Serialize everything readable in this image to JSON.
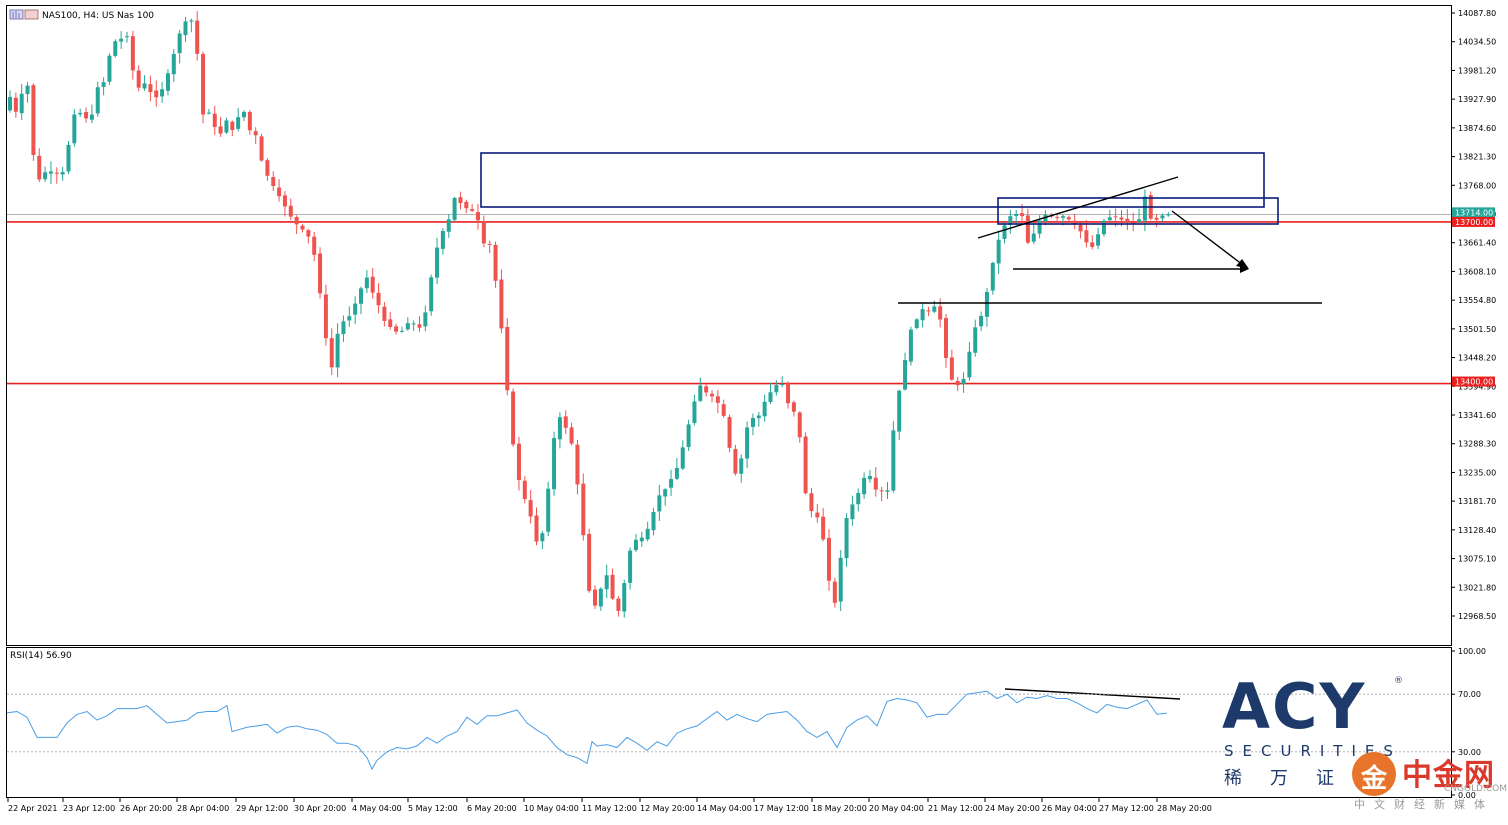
{
  "header": {
    "symbol_label": "NAS100, H4:  US Nas 100",
    "rsi_label": "RSI(14) 56.90"
  },
  "colors": {
    "bull": "#26a69a",
    "bear": "#ef5350",
    "level_line": "#e82020",
    "zone": "#0a1a7a",
    "trend": "#000000",
    "rsi": "#4a9de8",
    "grid": "#888888",
    "frame": "#000000"
  },
  "chart_data": [
    {
      "type": "candlestick",
      "title": "NAS100, H4:  US Nas 100",
      "ylim": [
        12940,
        14095
      ],
      "y_ticks": [
        "14087.80",
        "14034.50",
        "13981.20",
        "13927.90",
        "13874.60",
        "13821.30",
        "13768.00",
        "13714.70",
        "13661.40",
        "13608.10",
        "13554.80",
        "13501.50",
        "13448.20",
        "13394.90",
        "13341.60",
        "13288.30",
        "13235.00",
        "13181.70",
        "13128.40",
        "13075.10",
        "13021.80",
        "12968.50"
      ],
      "x_ticks": [
        "22 Apr 2021",
        "23 Apr 12:00",
        "26 Apr 20:00",
        "28 Apr 04:00",
        "29 Apr 12:00",
        "30 Apr 20:00",
        "4 May 04:00",
        "5 May 12:00",
        "6 May 20:00",
        "10 May 04:00",
        "11 May 12:00",
        "12 May 20:00",
        "14 May 04:00",
        "17 May 12:00",
        "18 May 20:00",
        "20 May 04:00",
        "21 May 12:00",
        "24 May 20:00",
        "26 May 04:00",
        "27 May 12:00",
        "28 May 20:00"
      ],
      "price_labels": [
        {
          "text": "13714.00",
          "value": 13714.0,
          "color": "#26a69a"
        },
        {
          "text": "13700.00",
          "value": 13700.0,
          "color": "#e82020"
        },
        {
          "text": "13400.00",
          "value": 13400.0,
          "color": "#e82020"
        }
      ],
      "horizontal_levels": [
        13700,
        13400
      ],
      "candle_anchors": [
        [
          0,
          13907
        ],
        [
          5,
          13932
        ],
        [
          10,
          13903
        ],
        [
          15,
          13942
        ],
        [
          20,
          13955
        ],
        [
          25,
          13790
        ],
        [
          30,
          13775
        ],
        [
          35,
          13800
        ],
        [
          40,
          13790
        ],
        [
          45,
          13790
        ],
        [
          50,
          13795
        ],
        [
          55,
          13895
        ],
        [
          60,
          13905
        ],
        [
          65,
          13898
        ],
        [
          70,
          13880
        ],
        [
          75,
          13950
        ],
        [
          80,
          13950
        ],
        [
          85,
          14005
        ],
        [
          90,
          14035
        ],
        [
          95,
          14040
        ],
        [
          100,
          14045
        ],
        [
          105,
          13975
        ],
        [
          110,
          13945
        ],
        [
          115,
          13960
        ],
        [
          120,
          13935
        ],
        [
          125,
          13930
        ],
        [
          130,
          13955
        ],
        [
          135,
          13990
        ],
        [
          140,
          14030
        ],
        [
          145,
          14070
        ],
        [
          150,
          14075
        ],
        [
          155,
          14072
        ],
        [
          160,
          13895
        ],
        [
          165,
          13910
        ],
        [
          170,
          13880
        ],
        [
          175,
          13860
        ],
        [
          180,
          13890
        ],
        [
          185,
          13870
        ],
        [
          190,
          13895
        ],
        [
          195,
          13905
        ],
        [
          200,
          13865
        ],
        [
          205,
          13860
        ],
        [
          210,
          13800
        ],
        [
          215,
          13780
        ],
        [
          220,
          13760
        ],
        [
          225,
          13740
        ],
        [
          230,
          13720
        ],
        [
          235,
          13700
        ],
        [
          240,
          13690
        ],
        [
          245,
          13680
        ],
        [
          250,
          13660
        ],
        [
          255,
          13590
        ],
        [
          260,
          13500
        ],
        [
          265,
          13420
        ],
        [
          270,
          13490
        ],
        [
          275,
          13515
        ],
        [
          280,
          13525
        ],
        [
          285,
          13550
        ],
        [
          290,
          13580
        ],
        [
          295,
          13600
        ],
        [
          300,
          13560
        ],
        [
          305,
          13540
        ],
        [
          310,
          13505
        ],
        [
          315,
          13505
        ],
        [
          320,
          13490
        ],
        [
          325,
          13505
        ],
        [
          330,
          13520
        ],
        [
          335,
          13500
        ],
        [
          340,
          13510
        ],
        [
          345,
          13580
        ],
        [
          350,
          13645
        ],
        [
          355,
          13680
        ],
        [
          360,
          13700
        ],
        [
          365,
          13745
        ],
        [
          370,
          13735
        ],
        [
          375,
          13725
        ],
        [
          380,
          13720
        ],
        [
          385,
          13700
        ],
        [
          390,
          13650
        ],
        [
          395,
          13660
        ],
        [
          400,
          13560
        ],
        [
          405,
          13470
        ],
        [
          410,
          13330
        ],
        [
          415,
          13250
        ],
        [
          420,
          13190
        ],
        [
          425,
          13180
        ],
        [
          430,
          13110
        ],
        [
          435,
          13100
        ],
        [
          440,
          13180
        ],
        [
          445,
          13290
        ],
        [
          450,
          13340
        ],
        [
          455,
          13320
        ],
        [
          460,
          13290
        ],
        [
          465,
          13210
        ],
        [
          470,
          13110
        ],
        [
          475,
          13000
        ],
        [
          480,
          12985
        ],
        [
          485,
          13030
        ],
        [
          490,
          13050
        ],
        [
          495,
          12975
        ],
        [
          500,
          12980
        ],
        [
          505,
          13070
        ],
        [
          510,
          13110
        ],
        [
          515,
          13110
        ],
        [
          520,
          13120
        ],
        [
          525,
          13150
        ],
        [
          530,
          13190
        ],
        [
          535,
          13200
        ],
        [
          540,
          13220
        ],
        [
          545,
          13240
        ],
        [
          550,
          13280
        ],
        [
          555,
          13325
        ],
        [
          560,
          13370
        ],
        [
          565,
          13400
        ],
        [
          570,
          13380
        ],
        [
          575,
          13375
        ],
        [
          580,
          13360
        ],
        [
          585,
          13330
        ],
        [
          590,
          13250
        ],
        [
          595,
          13220
        ],
        [
          600,
          13300
        ],
        [
          605,
          13340
        ],
        [
          610,
          13330
        ],
        [
          615,
          13360
        ],
        [
          620,
          13380
        ],
        [
          625,
          13395
        ],
        [
          630,
          13405
        ],
        [
          635,
          13365
        ],
        [
          640,
          13350
        ],
        [
          645,
          13300
        ],
        [
          650,
          13190
        ],
        [
          655,
          13160
        ],
        [
          660,
          13150
        ],
        [
          665,
          13100
        ],
        [
          670,
          13010
        ],
        [
          675,
          12985
        ],
        [
          680,
          13130
        ],
        [
          685,
          13165
        ],
        [
          690,
          13185
        ],
        [
          695,
          13210
        ],
        [
          700,
          13245
        ],
        [
          705,
          13200
        ],
        [
          710,
          13210
        ],
        [
          715,
          13175
        ],
        [
          720,
          13300
        ],
        [
          725,
          13380
        ],
        [
          730,
          13440
        ],
        [
          735,
          13500
        ],
        [
          740,
          13520
        ],
        [
          745,
          13540
        ],
        [
          750,
          13535
        ],
        [
          755,
          13545
        ],
        [
          760,
          13510
        ],
        [
          765,
          13420
        ],
        [
          770,
          13400
        ],
        [
          775,
          13395
        ],
        [
          780,
          13420
        ],
        [
          785,
          13500
        ],
        [
          790,
          13510
        ],
        [
          795,
          13550
        ],
        [
          800,
          13610
        ],
        [
          805,
          13660
        ],
        [
          810,
          13690
        ],
        [
          815,
          13710
        ],
        [
          820,
          13715
        ],
        [
          825,
          13712
        ],
        [
          830,
          13660
        ],
        [
          835,
          13680
        ],
        [
          840,
          13706
        ],
        [
          845,
          13715
        ],
        [
          850,
          13710
        ],
        [
          855,
          13708
        ],
        [
          860,
          13712
        ],
        [
          865,
          13700
        ],
        [
          870,
          13690
        ],
        [
          875,
          13675
        ],
        [
          880,
          13646
        ],
        [
          885,
          13665
        ],
        [
          890,
          13700
        ],
        [
          895,
          13708
        ],
        [
          900,
          13710
        ],
        [
          905,
          13705
        ],
        [
          910,
          13700
        ],
        [
          915,
          13698
        ],
        [
          920,
          13705
        ],
        [
          925,
          13750
        ],
        [
          930,
          13700
        ],
        [
          935,
          13705
        ],
        [
          940,
          13714
        ]
      ],
      "annotations": [
        "resistance zone rectangle",
        "consolidation box",
        "rising wedge trendline",
        "support trendline",
        "horizontal support line at 13554",
        "projected drop arrow"
      ]
    },
    {
      "type": "line",
      "title": "RSI(14) 56.90",
      "ylim": [
        0,
        100
      ],
      "y_ticks": [
        "100.00",
        "70.00",
        "30.00",
        "0.00"
      ],
      "reference_levels": [
        70,
        30
      ],
      "rsi_anchors": [
        [
          0,
          57
        ],
        [
          10,
          58
        ],
        [
          20,
          54
        ],
        [
          30,
          40
        ],
        [
          40,
          40
        ],
        [
          50,
          40
        ],
        [
          60,
          50
        ],
        [
          70,
          56
        ],
        [
          80,
          58
        ],
        [
          90,
          52
        ],
        [
          100,
          55
        ],
        [
          110,
          60
        ],
        [
          120,
          60
        ],
        [
          130,
          60
        ],
        [
          140,
          62
        ],
        [
          150,
          56
        ],
        [
          160,
          50
        ],
        [
          170,
          51
        ],
        [
          180,
          52
        ],
        [
          190,
          57
        ],
        [
          200,
          58
        ],
        [
          210,
          58
        ],
        [
          220,
          62
        ],
        [
          225,
          44
        ],
        [
          230,
          45
        ],
        [
          240,
          47
        ],
        [
          250,
          48
        ],
        [
          260,
          49
        ],
        [
          270,
          43
        ],
        [
          280,
          47
        ],
        [
          290,
          48
        ],
        [
          300,
          46
        ],
        [
          310,
          45
        ],
        [
          320,
          42
        ],
        [
          330,
          36
        ],
        [
          340,
          36
        ],
        [
          350,
          34
        ],
        [
          360,
          26
        ],
        [
          365,
          18
        ],
        [
          370,
          24
        ],
        [
          380,
          30
        ],
        [
          390,
          33
        ],
        [
          400,
          32
        ],
        [
          410,
          34
        ],
        [
          420,
          40
        ],
        [
          430,
          36
        ],
        [
          440,
          41
        ],
        [
          450,
          44
        ],
        [
          460,
          54
        ],
        [
          470,
          49
        ],
        [
          480,
          55
        ],
        [
          490,
          55
        ],
        [
          500,
          57
        ],
        [
          510,
          59
        ],
        [
          520,
          50
        ],
        [
          530,
          45
        ],
        [
          540,
          41
        ],
        [
          550,
          33
        ],
        [
          560,
          28
        ],
        [
          570,
          26
        ],
        [
          580,
          22
        ],
        [
          585,
          37
        ],
        [
          590,
          34
        ],
        [
          600,
          35
        ],
        [
          610,
          33
        ],
        [
          620,
          40
        ],
        [
          630,
          36
        ],
        [
          640,
          31
        ],
        [
          650,
          37
        ],
        [
          660,
          34
        ],
        [
          670,
          43
        ],
        [
          680,
          46
        ],
        [
          690,
          48
        ],
        [
          700,
          53
        ],
        [
          710,
          58
        ],
        [
          720,
          52
        ],
        [
          730,
          56
        ],
        [
          740,
          53
        ],
        [
          750,
          51
        ],
        [
          760,
          56
        ],
        [
          770,
          57
        ],
        [
          780,
          58
        ],
        [
          790,
          52
        ],
        [
          800,
          44
        ],
        [
          810,
          40
        ],
        [
          820,
          44
        ],
        [
          830,
          33
        ],
        [
          840,
          47
        ],
        [
          850,
          52
        ],
        [
          860,
          55
        ],
        [
          870,
          48
        ],
        [
          880,
          65
        ],
        [
          890,
          67
        ],
        [
          900,
          66
        ],
        [
          910,
          64
        ],
        [
          920,
          54
        ],
        [
          930,
          56
        ],
        [
          940,
          56
        ],
        [
          950,
          63
        ],
        [
          960,
          70
        ],
        [
          970,
          71
        ],
        [
          980,
          72
        ],
        [
          990,
          67
        ],
        [
          1000,
          70
        ],
        [
          1010,
          64
        ],
        [
          1020,
          68
        ],
        [
          1030,
          67
        ],
        [
          1040,
          69
        ],
        [
          1050,
          67
        ],
        [
          1060,
          67
        ],
        [
          1070,
          64
        ],
        [
          1080,
          60
        ],
        [
          1090,
          57
        ],
        [
          1100,
          63
        ],
        [
          1110,
          61
        ],
        [
          1120,
          60
        ],
        [
          1130,
          63
        ],
        [
          1140,
          66
        ],
        [
          1150,
          56
        ],
        [
          1160,
          56.9
        ]
      ],
      "annotations": [
        "bearish divergence trendline"
      ]
    }
  ],
  "branding": {
    "acy_main": "ACY",
    "acy_securities": "SECURITIES",
    "acy_cn": "稀万证",
    "acy_reg": "®",
    "cngold_mark": "金",
    "cngold_name": "中金网",
    "cngold_url": "CNGOLD.COM.CN",
    "cngold_sub": "中文财经新媒体"
  }
}
